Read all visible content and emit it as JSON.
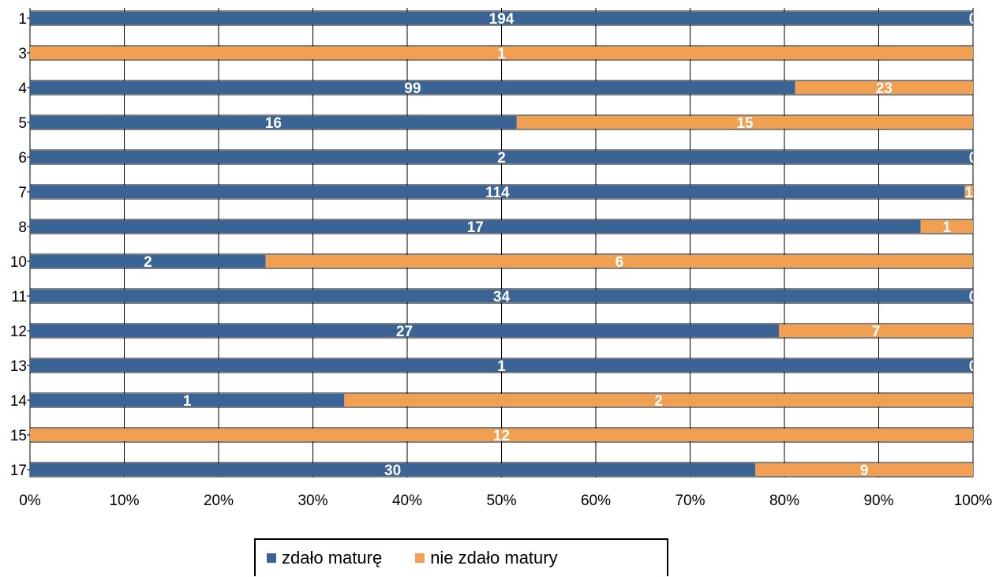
{
  "chart_data": {
    "type": "bar",
    "orientation": "horizontal",
    "stacked": "percent",
    "categories": [
      "1",
      "3",
      "4",
      "5",
      "6",
      "7",
      "8",
      "10",
      "11",
      "12",
      "13",
      "14",
      "15",
      "17"
    ],
    "series": [
      {
        "name": "zdało maturę",
        "color": "#3b6496",
        "values": [
          194,
          0,
          99,
          16,
          2,
          114,
          17,
          2,
          34,
          27,
          1,
          1,
          0,
          30
        ]
      },
      {
        "name": "nie zdało matury",
        "color": "#f0a050",
        "values": [
          0,
          1,
          23,
          15,
          0,
          1,
          1,
          6,
          0,
          7,
          0,
          2,
          12,
          9
        ]
      }
    ],
    "x_ticks": [
      "0%",
      "10%",
      "20%",
      "30%",
      "40%",
      "50%",
      "60%",
      "70%",
      "80%",
      "90%",
      "100%"
    ],
    "xlim": [
      0,
      100
    ],
    "grid": true,
    "legend_position": "bottom",
    "title": "",
    "xlabel": "",
    "ylabel": ""
  }
}
